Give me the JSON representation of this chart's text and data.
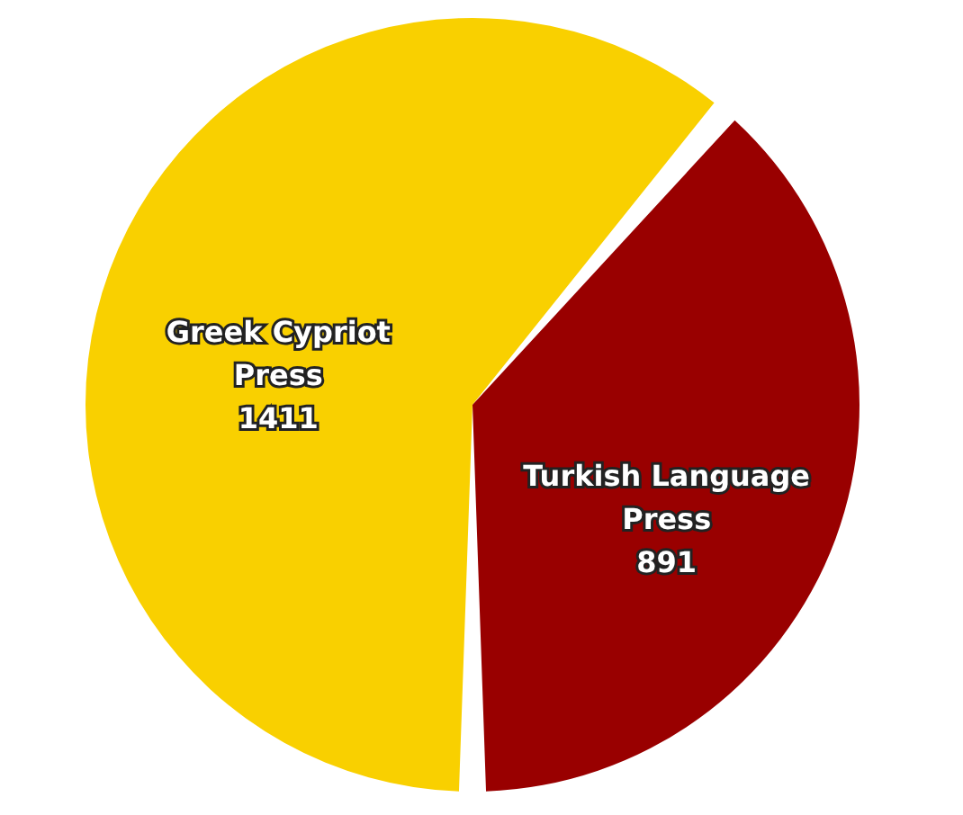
{
  "chart_data": {
    "type": "pie",
    "categories": [
      "Greek Cypriot Press",
      "Turkish Language Press"
    ],
    "values": [
      1411,
      891
    ],
    "colors": [
      "#f9d000",
      "#990000"
    ],
    "data_labels": true,
    "legend": false
  }
}
